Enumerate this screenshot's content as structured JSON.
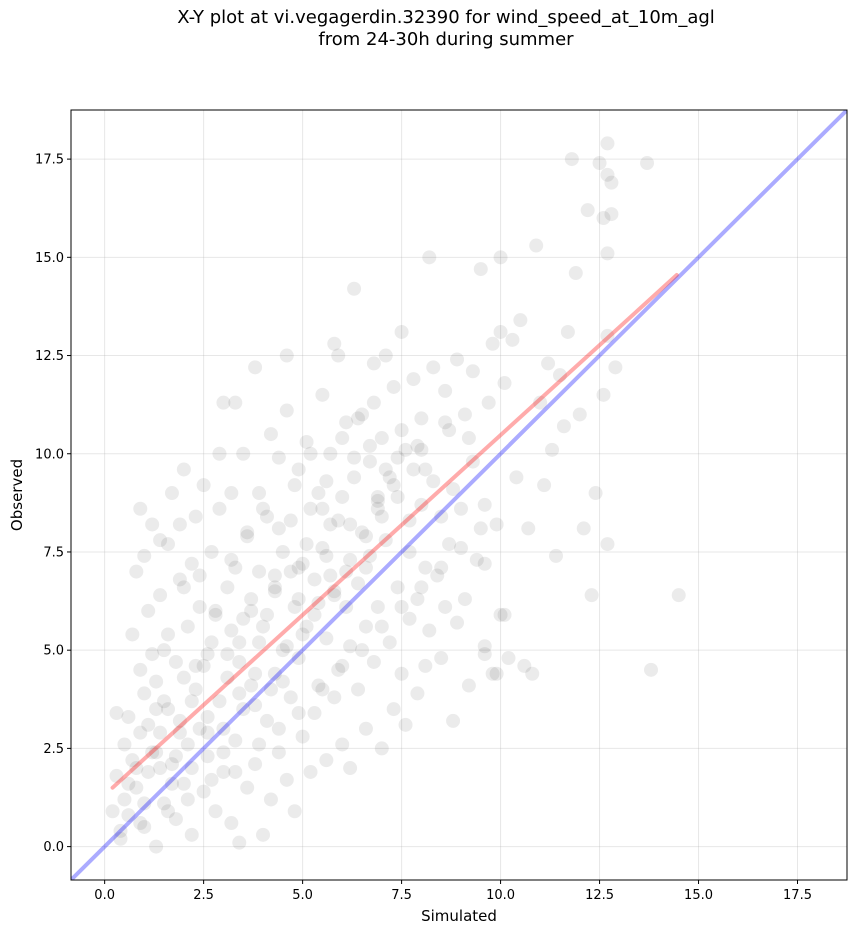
{
  "chart_data": {
    "type": "scatter",
    "title_line1": "X-Y plot at vi.vegagerdin.32390 for wind_speed_at_10m_agl",
    "title_line2": "from 24-30h during summer",
    "xlabel": "Simulated",
    "ylabel": "Observed",
    "xlim": [
      -0.85,
      18.75
    ],
    "ylim": [
      -0.85,
      18.75
    ],
    "xticks": [
      0.0,
      2.5,
      5.0,
      7.5,
      10.0,
      12.5,
      15.0,
      17.5
    ],
    "yticks": [
      0.0,
      2.5,
      5.0,
      7.5,
      10.0,
      12.5,
      15.0,
      17.5
    ],
    "xtick_labels": [
      "0.0",
      "2.5",
      "5.0",
      "7.5",
      "10.0",
      "12.5",
      "15.0",
      "17.5"
    ],
    "ytick_labels": [
      "0.0",
      "2.5",
      "5.0",
      "7.5",
      "10.0",
      "12.5",
      "15.0",
      "17.5"
    ],
    "grid": true,
    "marker_color": "#000000",
    "marker_alpha": 0.08,
    "regression_line": {
      "color": "#ff0000",
      "x": [
        0.2,
        14.45
      ],
      "y": [
        1.5,
        14.55
      ]
    },
    "identity_line": {
      "color": "#0000ff",
      "x": [
        -0.85,
        18.75
      ],
      "y": [
        -0.85,
        18.75
      ]
    },
    "points": [
      [
        0.2,
        0.9
      ],
      [
        0.3,
        3.4
      ],
      [
        0.3,
        1.8
      ],
      [
        0.4,
        0.4
      ],
      [
        0.5,
        2.6
      ],
      [
        0.5,
        1.2
      ],
      [
        0.6,
        3.3
      ],
      [
        0.6,
        0.8
      ],
      [
        0.7,
        2.2
      ],
      [
        0.7,
        5.4
      ],
      [
        0.8,
        1.5
      ],
      [
        0.8,
        7.0
      ],
      [
        0.9,
        2.9
      ],
      [
        0.9,
        4.5
      ],
      [
        1.0,
        0.5
      ],
      [
        1.0,
        3.9
      ],
      [
        1.0,
        7.4
      ],
      [
        1.1,
        1.9
      ],
      [
        1.1,
        6.0
      ],
      [
        1.2,
        2.4
      ],
      [
        1.2,
        8.2
      ],
      [
        1.3,
        0.0
      ],
      [
        1.3,
        4.2
      ],
      [
        1.4,
        2.9
      ],
      [
        1.4,
        6.4
      ],
      [
        1.5,
        1.1
      ],
      [
        1.5,
        5.0
      ],
      [
        1.6,
        3.5
      ],
      [
        1.6,
        7.7
      ],
      [
        1.7,
        2.1
      ],
      [
        1.7,
        9.0
      ],
      [
        1.8,
        0.7
      ],
      [
        1.8,
        4.7
      ],
      [
        1.9,
        3.2
      ],
      [
        1.9,
        6.8
      ],
      [
        2.0,
        9.6
      ],
      [
        2.0,
        1.6
      ],
      [
        2.1,
        5.6
      ],
      [
        2.1,
        2.6
      ],
      [
        2.2,
        7.2
      ],
      [
        2.2,
        0.3
      ],
      [
        2.3,
        4.0
      ],
      [
        2.3,
        8.4
      ],
      [
        2.4,
        3.0
      ],
      [
        2.4,
        6.1
      ],
      [
        2.5,
        1.4
      ],
      [
        2.5,
        9.2
      ],
      [
        2.6,
        4.9
      ],
      [
        2.6,
        2.3
      ],
      [
        2.7,
        7.5
      ],
      [
        2.8,
        0.9
      ],
      [
        2.8,
        5.9
      ],
      [
        2.9,
        3.7
      ],
      [
        2.9,
        8.6
      ],
      [
        3.0,
        1.9
      ],
      [
        3.0,
        11.3
      ],
      [
        3.1,
        6.6
      ],
      [
        3.1,
        4.3
      ],
      [
        3.2,
        0.6
      ],
      [
        3.2,
        9.0
      ],
      [
        3.3,
        2.7
      ],
      [
        3.3,
        7.1
      ],
      [
        3.4,
        5.2
      ],
      [
        3.4,
        0.1
      ],
      [
        3.5,
        10.0
      ],
      [
        3.5,
        3.5
      ],
      [
        3.6,
        8.0
      ],
      [
        3.6,
        1.5
      ],
      [
        3.7,
        6.3
      ],
      [
        3.7,
        4.1
      ],
      [
        3.8,
        12.2
      ],
      [
        3.8,
        2.1
      ],
      [
        3.9,
        9.0
      ],
      [
        3.9,
        7.0
      ],
      [
        4.0,
        0.3
      ],
      [
        4.0,
        5.6
      ],
      [
        4.1,
        3.2
      ],
      [
        4.1,
        8.4
      ],
      [
        4.2,
        10.5
      ],
      [
        4.2,
        1.2
      ],
      [
        4.3,
        6.6
      ],
      [
        4.3,
        4.4
      ],
      [
        4.4,
        9.9
      ],
      [
        4.4,
        2.4
      ],
      [
        4.5,
        7.5
      ],
      [
        4.5,
        5.0
      ],
      [
        4.6,
        11.1
      ],
      [
        4.6,
        1.7
      ],
      [
        4.7,
        8.3
      ],
      [
        4.7,
        3.8
      ],
      [
        4.8,
        6.1
      ],
      [
        4.8,
        0.9
      ],
      [
        4.9,
        9.6
      ],
      [
        4.9,
        4.8
      ],
      [
        5.0,
        7.2
      ],
      [
        5.0,
        2.8
      ],
      [
        5.1,
        10.3
      ],
      [
        5.1,
        5.6
      ],
      [
        5.2,
        8.6
      ],
      [
        5.2,
        1.9
      ],
      [
        5.3,
        6.8
      ],
      [
        5.3,
        3.4
      ],
      [
        5.4,
        9.0
      ],
      [
        5.4,
        4.1
      ],
      [
        5.5,
        11.5
      ],
      [
        5.5,
        7.6
      ],
      [
        5.6,
        2.2
      ],
      [
        5.6,
        5.3
      ],
      [
        5.7,
        8.2
      ],
      [
        5.7,
        10.0
      ],
      [
        5.8,
        3.8
      ],
      [
        5.8,
        6.4
      ],
      [
        5.9,
        12.5
      ],
      [
        5.9,
        4.5
      ],
      [
        6.0,
        8.9
      ],
      [
        6.0,
        2.6
      ],
      [
        6.1,
        7.0
      ],
      [
        6.1,
        10.8
      ],
      [
        6.2,
        5.1
      ],
      [
        6.2,
        2.0
      ],
      [
        6.3,
        9.4
      ],
      [
        6.3,
        14.2
      ],
      [
        6.4,
        6.7
      ],
      [
        6.4,
        4.0
      ],
      [
        6.5,
        8.0
      ],
      [
        6.5,
        11.0
      ],
      [
        6.6,
        5.6
      ],
      [
        6.6,
        3.0
      ],
      [
        6.7,
        9.8
      ],
      [
        6.7,
        7.4
      ],
      [
        6.8,
        12.3
      ],
      [
        6.8,
        4.7
      ],
      [
        6.9,
        8.6
      ],
      [
        6.9,
        6.1
      ],
      [
        7.0,
        10.4
      ],
      [
        7.0,
        2.5
      ],
      [
        7.1,
        7.8
      ],
      [
        7.1,
        12.5
      ],
      [
        7.2,
        5.2
      ],
      [
        7.2,
        9.4
      ],
      [
        7.3,
        3.5
      ],
      [
        7.3,
        11.7
      ],
      [
        7.4,
        6.6
      ],
      [
        7.4,
        8.9
      ],
      [
        7.5,
        4.4
      ],
      [
        7.5,
        13.1
      ],
      [
        7.6,
        10.1
      ],
      [
        7.6,
        3.1
      ],
      [
        7.7,
        7.5
      ],
      [
        7.7,
        5.8
      ],
      [
        7.8,
        9.6
      ],
      [
        7.8,
        11.9
      ],
      [
        7.9,
        3.9
      ],
      [
        7.9,
        6.3
      ],
      [
        8.0,
        8.7
      ],
      [
        8.0,
        10.9
      ],
      [
        8.1,
        4.6
      ],
      [
        8.1,
        7.1
      ],
      [
        8.2,
        15.0
      ],
      [
        8.2,
        5.5
      ],
      [
        8.3,
        9.3
      ],
      [
        8.3,
        12.2
      ],
      [
        8.4,
        6.9
      ],
      [
        8.5,
        8.4
      ],
      [
        8.5,
        4.8
      ],
      [
        8.6,
        10.8
      ],
      [
        8.6,
        11.6
      ],
      [
        8.7,
        7.7
      ],
      [
        8.8,
        3.2
      ],
      [
        8.8,
        9.1
      ],
      [
        8.9,
        12.4
      ],
      [
        8.9,
        5.7
      ],
      [
        9.0,
        8.6
      ],
      [
        9.1,
        6.3
      ],
      [
        9.1,
        11.0
      ],
      [
        9.2,
        4.1
      ],
      [
        9.3,
        9.8
      ],
      [
        9.3,
        12.1
      ],
      [
        9.4,
        7.3
      ],
      [
        9.5,
        14.7
      ],
      [
        9.6,
        5.1
      ],
      [
        9.6,
        8.7
      ],
      [
        9.7,
        11.3
      ],
      [
        9.8,
        4.4
      ],
      [
        9.8,
        12.8
      ],
      [
        9.9,
        8.2
      ],
      [
        10.0,
        15.0
      ],
      [
        10.0,
        5.9
      ],
      [
        10.0,
        13.1
      ],
      [
        10.1,
        11.8
      ],
      [
        10.2,
        4.8
      ],
      [
        10.3,
        12.9
      ],
      [
        10.4,
        9.4
      ],
      [
        10.5,
        13.4
      ],
      [
        10.6,
        4.6
      ],
      [
        10.7,
        8.1
      ],
      [
        10.8,
        4.4
      ],
      [
        10.9,
        15.3
      ],
      [
        11.0,
        11.3
      ],
      [
        11.1,
        9.2
      ],
      [
        11.2,
        12.3
      ],
      [
        11.3,
        10.1
      ],
      [
        11.4,
        7.4
      ],
      [
        11.5,
        12.0
      ],
      [
        11.6,
        10.7
      ],
      [
        11.7,
        13.1
      ],
      [
        11.8,
        17.5
      ],
      [
        11.9,
        14.6
      ],
      [
        12.0,
        11.0
      ],
      [
        12.1,
        8.1
      ],
      [
        12.2,
        16.2
      ],
      [
        12.3,
        6.4
      ],
      [
        12.4,
        9.0
      ],
      [
        12.5,
        17.4
      ],
      [
        12.6,
        16.0
      ],
      [
        12.7,
        17.1
      ],
      [
        12.7,
        13.0
      ],
      [
        12.8,
        16.1
      ],
      [
        12.8,
        16.9
      ],
      [
        12.9,
        12.2
      ],
      [
        12.7,
        17.9
      ],
      [
        12.6,
        11.5
      ],
      [
        12.7,
        7.7
      ],
      [
        12.7,
        15.1
      ],
      [
        13.7,
        17.4
      ],
      [
        13.8,
        4.5
      ],
      [
        14.5,
        6.4
      ],
      [
        9.9,
        4.4
      ],
      [
        9.6,
        4.9
      ],
      [
        10.1,
        5.9
      ],
      [
        8.6,
        6.1
      ],
      [
        9.6,
        7.2
      ],
      [
        0.8,
        2.0
      ],
      [
        1.3,
        2.4
      ],
      [
        1.7,
        1.6
      ],
      [
        2.2,
        3.7
      ],
      [
        2.6,
        3.3
      ],
      [
        3.0,
        2.4
      ],
      [
        3.4,
        4.7
      ],
      [
        3.8,
        3.6
      ],
      [
        4.1,
        5.9
      ],
      [
        4.5,
        4.2
      ],
      [
        4.9,
        6.3
      ],
      [
        5.3,
        5.9
      ],
      [
        5.7,
        6.9
      ],
      [
        6.1,
        6.1
      ],
      [
        6.6,
        7.9
      ],
      [
        6.9,
        8.9
      ],
      [
        7.3,
        9.2
      ],
      [
        7.7,
        8.3
      ],
      [
        8.1,
        9.6
      ],
      [
        1.1,
        3.1
      ],
      [
        1.5,
        3.7
      ],
      [
        1.9,
        2.9
      ],
      [
        2.3,
        4.6
      ],
      [
        2.7,
        5.2
      ],
      [
        3.1,
        4.9
      ],
      [
        3.5,
        5.8
      ],
      [
        3.9,
        5.2
      ],
      [
        4.3,
        6.9
      ],
      [
        4.7,
        7.0
      ],
      [
        5.1,
        7.7
      ],
      [
        5.5,
        8.6
      ],
      [
        5.9,
        8.3
      ],
      [
        6.3,
        9.9
      ],
      [
        6.7,
        10.2
      ],
      [
        7.1,
        9.6
      ],
      [
        7.5,
        10.6
      ],
      [
        7.9,
        10.2
      ],
      [
        0.6,
        1.6
      ],
      [
        1.0,
        1.1
      ],
      [
        1.4,
        2.0
      ],
      [
        1.8,
        2.3
      ],
      [
        2.2,
        2.0
      ],
      [
        2.6,
        2.9
      ],
      [
        3.0,
        3.0
      ],
      [
        3.4,
        3.9
      ],
      [
        3.8,
        4.4
      ],
      [
        4.2,
        4.0
      ],
      [
        4.6,
        5.1
      ],
      [
        5.0,
        5.4
      ],
      [
        5.4,
        6.2
      ],
      [
        5.8,
        6.5
      ],
      [
        6.2,
        7.3
      ],
      [
        6.6,
        7.1
      ],
      [
        7.0,
        8.4
      ],
      [
        1.2,
        4.9
      ],
      [
        1.6,
        5.4
      ],
      [
        2.0,
        6.6
      ],
      [
        2.4,
        6.9
      ],
      [
        2.8,
        6.0
      ],
      [
        3.2,
        7.3
      ],
      [
        3.6,
        7.9
      ],
      [
        4.0,
        8.6
      ],
      [
        4.4,
        8.1
      ],
      [
        4.8,
        9.2
      ],
      [
        5.2,
        10.0
      ],
      [
        5.6,
        9.3
      ],
      [
        6.0,
        10.4
      ],
      [
        6.4,
        10.9
      ],
      [
        6.8,
        11.3
      ],
      [
        0.4,
        0.2
      ],
      [
        0.9,
        0.6
      ],
      [
        1.6,
        0.9
      ],
      [
        2.1,
        1.2
      ],
      [
        2.7,
        1.7
      ],
      [
        3.3,
        1.9
      ],
      [
        3.9,
        2.6
      ],
      [
        4.4,
        3.0
      ],
      [
        4.9,
        3.4
      ],
      [
        5.5,
        4.0
      ],
      [
        6.0,
        4.6
      ],
      [
        6.5,
        5.0
      ],
      [
        7.0,
        5.6
      ],
      [
        7.5,
        6.1
      ],
      [
        8.0,
        6.6
      ],
      [
        8.5,
        7.1
      ],
      [
        9.0,
        7.6
      ],
      [
        9.5,
        8.1
      ],
      [
        1.3,
        3.5
      ],
      [
        2.0,
        4.3
      ],
      [
        2.5,
        4.6
      ],
      [
        3.2,
        5.5
      ],
      [
        3.7,
        6.0
      ],
      [
        4.3,
        6.5
      ],
      [
        4.9,
        7.1
      ],
      [
        5.6,
        7.4
      ],
      [
        6.2,
        8.2
      ],
      [
        6.9,
        8.8
      ],
      [
        7.4,
        9.9
      ],
      [
        8.0,
        10.1
      ],
      [
        8.7,
        10.6
      ],
      [
        9.2,
        10.4
      ],
      [
        2.9,
        10.0
      ],
      [
        3.3,
        11.3
      ],
      [
        4.6,
        12.5
      ],
      [
        5.8,
        12.8
      ],
      [
        0.9,
        8.6
      ],
      [
        1.4,
        7.8
      ],
      [
        1.9,
        8.2
      ]
    ]
  }
}
